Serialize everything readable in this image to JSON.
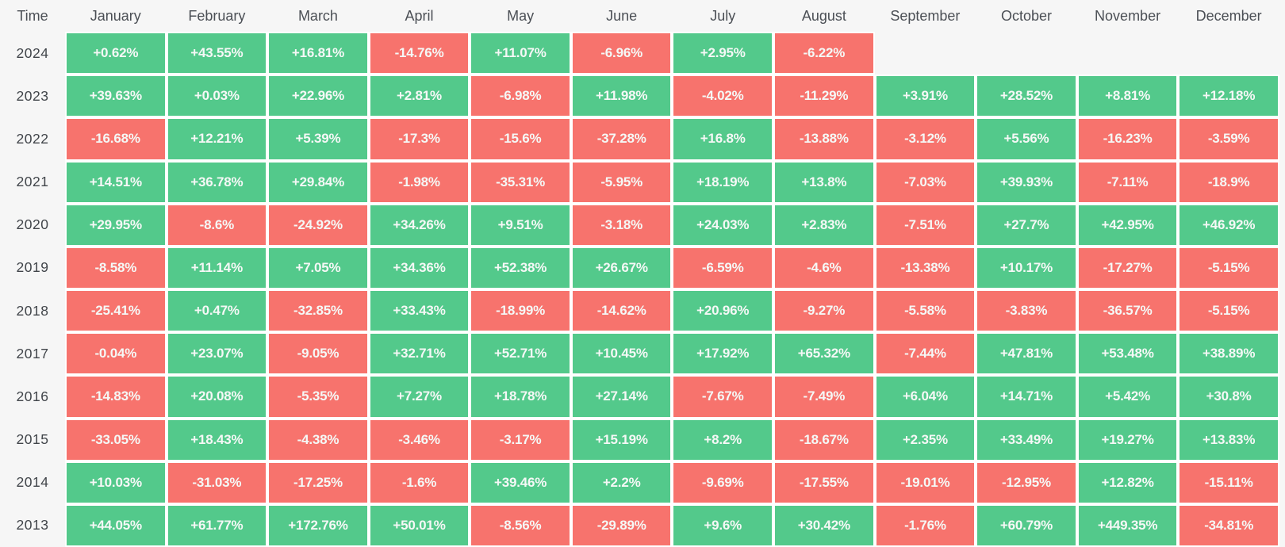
{
  "table": {
    "corner_label": "Time",
    "columns": [
      "January",
      "February",
      "March",
      "April",
      "May",
      "June",
      "July",
      "August",
      "September",
      "October",
      "November",
      "December"
    ],
    "colors": {
      "positive": "#53c98b",
      "negative": "#f7736d",
      "background": "#f6f6f6",
      "gap": "#ffffff",
      "header_text": "#4b4f55",
      "cell_text": "#f5f8f6"
    },
    "rows": [
      {
        "year": "2024",
        "values": [
          "+0.62%",
          "+43.55%",
          "+16.81%",
          "-14.76%",
          "+11.07%",
          "-6.96%",
          "+2.95%",
          "-6.22%",
          null,
          null,
          null,
          null
        ]
      },
      {
        "year": "2023",
        "values": [
          "+39.63%",
          "+0.03%",
          "+22.96%",
          "+2.81%",
          "-6.98%",
          "+11.98%",
          "-4.02%",
          "-11.29%",
          "+3.91%",
          "+28.52%",
          "+8.81%",
          "+12.18%"
        ]
      },
      {
        "year": "2022",
        "values": [
          "-16.68%",
          "+12.21%",
          "+5.39%",
          "-17.3%",
          "-15.6%",
          "-37.28%",
          "+16.8%",
          "-13.88%",
          "-3.12%",
          "+5.56%",
          "-16.23%",
          "-3.59%"
        ]
      },
      {
        "year": "2021",
        "values": [
          "+14.51%",
          "+36.78%",
          "+29.84%",
          "-1.98%",
          "-35.31%",
          "-5.95%",
          "+18.19%",
          "+13.8%",
          "-7.03%",
          "+39.93%",
          "-7.11%",
          "-18.9%"
        ]
      },
      {
        "year": "2020",
        "values": [
          "+29.95%",
          "-8.6%",
          "-24.92%",
          "+34.26%",
          "+9.51%",
          "-3.18%",
          "+24.03%",
          "+2.83%",
          "-7.51%",
          "+27.7%",
          "+42.95%",
          "+46.92%"
        ]
      },
      {
        "year": "2019",
        "values": [
          "-8.58%",
          "+11.14%",
          "+7.05%",
          "+34.36%",
          "+52.38%",
          "+26.67%",
          "-6.59%",
          "-4.6%",
          "-13.38%",
          "+10.17%",
          "-17.27%",
          "-5.15%"
        ]
      },
      {
        "year": "2018",
        "values": [
          "-25.41%",
          "+0.47%",
          "-32.85%",
          "+33.43%",
          "-18.99%",
          "-14.62%",
          "+20.96%",
          "-9.27%",
          "-5.58%",
          "-3.83%",
          "-36.57%",
          "-5.15%"
        ]
      },
      {
        "year": "2017",
        "values": [
          "-0.04%",
          "+23.07%",
          "-9.05%",
          "+32.71%",
          "+52.71%",
          "+10.45%",
          "+17.92%",
          "+65.32%",
          "-7.44%",
          "+47.81%",
          "+53.48%",
          "+38.89%"
        ]
      },
      {
        "year": "2016",
        "values": [
          "-14.83%",
          "+20.08%",
          "-5.35%",
          "+7.27%",
          "+18.78%",
          "+27.14%",
          "-7.67%",
          "-7.49%",
          "+6.04%",
          "+14.71%",
          "+5.42%",
          "+30.8%"
        ]
      },
      {
        "year": "2015",
        "values": [
          "-33.05%",
          "+18.43%",
          "-4.38%",
          "-3.46%",
          "-3.17%",
          "+15.19%",
          "+8.2%",
          "-18.67%",
          "+2.35%",
          "+33.49%",
          "+19.27%",
          "+13.83%"
        ]
      },
      {
        "year": "2014",
        "values": [
          "+10.03%",
          "-31.03%",
          "-17.25%",
          "-1.6%",
          "+39.46%",
          "+2.2%",
          "-9.69%",
          "-17.55%",
          "-19.01%",
          "-12.95%",
          "+12.82%",
          "-15.11%"
        ]
      },
      {
        "year": "2013",
        "values": [
          "+44.05%",
          "+61.77%",
          "+172.76%",
          "+50.01%",
          "-8.56%",
          "-29.89%",
          "+9.6%",
          "+30.42%",
          "-1.76%",
          "+60.79%",
          "+449.35%",
          "-34.81%"
        ]
      }
    ]
  },
  "chart_data": {
    "type": "heatmap",
    "x_labels": [
      "January",
      "February",
      "March",
      "April",
      "May",
      "June",
      "July",
      "August",
      "September",
      "October",
      "November",
      "December"
    ],
    "y_labels": [
      "2024",
      "2023",
      "2022",
      "2021",
      "2020",
      "2019",
      "2018",
      "2017",
      "2016",
      "2015",
      "2014",
      "2013"
    ],
    "y_axis_title": "Time",
    "value_unit": "%",
    "legend_position": "none",
    "grid": false,
    "color_rule": "green if value >= 0, red if value < 0",
    "values": [
      [
        0.62,
        43.55,
        16.81,
        -14.76,
        11.07,
        -6.96,
        2.95,
        -6.22,
        null,
        null,
        null,
        null
      ],
      [
        39.63,
        0.03,
        22.96,
        2.81,
        -6.98,
        11.98,
        -4.02,
        -11.29,
        3.91,
        28.52,
        8.81,
        12.18
      ],
      [
        -16.68,
        12.21,
        5.39,
        -17.3,
        -15.6,
        -37.28,
        16.8,
        -13.88,
        -3.12,
        5.56,
        -16.23,
        -3.59
      ],
      [
        14.51,
        36.78,
        29.84,
        -1.98,
        -35.31,
        -5.95,
        18.19,
        13.8,
        -7.03,
        39.93,
        -7.11,
        -18.9
      ],
      [
        29.95,
        -8.6,
        -24.92,
        34.26,
        9.51,
        -3.18,
        24.03,
        2.83,
        -7.51,
        27.7,
        42.95,
        46.92
      ],
      [
        -8.58,
        11.14,
        7.05,
        34.36,
        52.38,
        26.67,
        -6.59,
        -4.6,
        -13.38,
        10.17,
        -17.27,
        -5.15
      ],
      [
        -25.41,
        0.47,
        -32.85,
        33.43,
        -18.99,
        -14.62,
        20.96,
        -9.27,
        -5.58,
        -3.83,
        -36.57,
        -5.15
      ],
      [
        -0.04,
        23.07,
        -9.05,
        32.71,
        52.71,
        10.45,
        17.92,
        65.32,
        -7.44,
        47.81,
        53.48,
        38.89
      ],
      [
        -14.83,
        20.08,
        -5.35,
        7.27,
        18.78,
        27.14,
        -7.67,
        -7.49,
        6.04,
        14.71,
        5.42,
        30.8
      ],
      [
        -33.05,
        18.43,
        -4.38,
        -3.46,
        -3.17,
        15.19,
        8.2,
        -18.67,
        2.35,
        33.49,
        19.27,
        13.83
      ],
      [
        10.03,
        -31.03,
        -17.25,
        -1.6,
        39.46,
        2.2,
        -9.69,
        -17.55,
        -19.01,
        -12.95,
        12.82,
        -15.11
      ],
      [
        44.05,
        61.77,
        172.76,
        50.01,
        -8.56,
        -29.89,
        9.6,
        30.42,
        -1.76,
        60.79,
        449.35,
        -34.81
      ]
    ]
  }
}
